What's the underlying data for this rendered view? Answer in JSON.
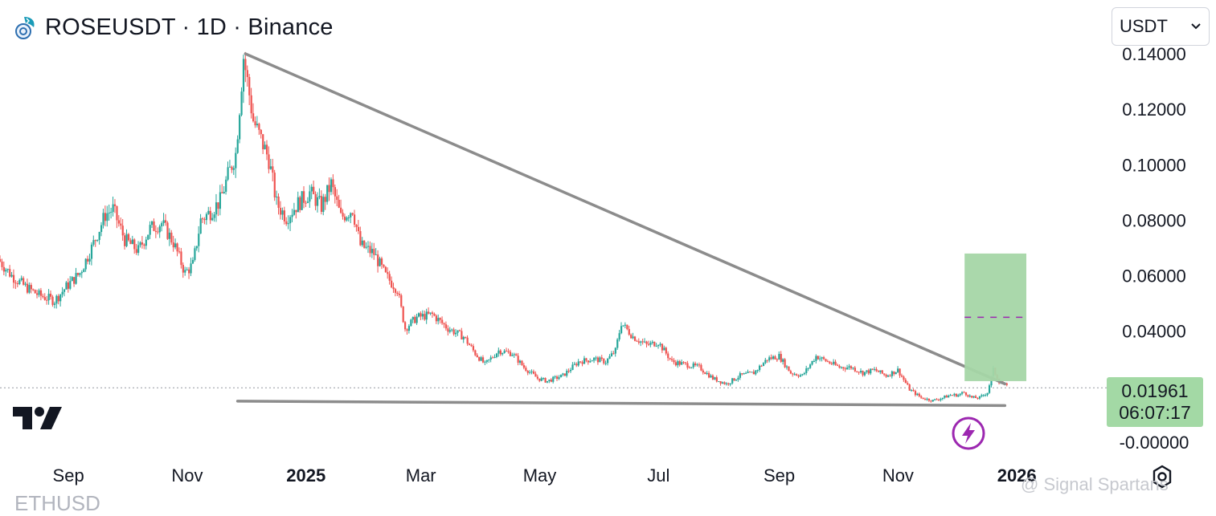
{
  "header": {
    "title": "ROSEUSDT · 1D · Binance",
    "currency_selector": "USDT"
  },
  "price_label": {
    "price": "0.01961",
    "countdown": "06:07:17"
  },
  "watermark": "@ Signal Spartans",
  "bottom_clipped_text": "ETHUSD",
  "colors": {
    "up": "#26a69a",
    "down": "#ef5350",
    "trendline": "#8c8c8c",
    "target_zone": "#a5d6a7",
    "accent": "#9c27b0"
  },
  "icons": {
    "logo": "rose-coin-icon",
    "brand": "tradingview-logo-icon",
    "settings": "gear-icon",
    "alert": "lightning-bolt-icon"
  },
  "chart_data": {
    "type": "candlestick",
    "symbol": "ROSEUSDT",
    "interval": "1D",
    "exchange": "Binance",
    "ylim": [
      -0.002,
      0.1435
    ],
    "y_ticks": [
      {
        "value": 0.14,
        "label": "0.14000"
      },
      {
        "value": 0.12,
        "label": "0.12000"
      },
      {
        "value": 0.1,
        "label": "0.10000"
      },
      {
        "value": 0.08,
        "label": "0.08000"
      },
      {
        "value": 0.06,
        "label": "0.06000"
      },
      {
        "value": 0.04,
        "label": "0.04000"
      },
      {
        "value": 0.0,
        "label": "-0.00000"
      }
    ],
    "x_range": [
      "2024-08-01",
      "2026-01-10"
    ],
    "x_ticks": [
      {
        "date": "2024-09-01",
        "label": "Sep",
        "bold": false
      },
      {
        "date": "2024-11-01",
        "label": "Nov",
        "bold": false
      },
      {
        "date": "2025-01-01",
        "label": "2025",
        "bold": true
      },
      {
        "date": "2025-03-01",
        "label": "Mar",
        "bold": false
      },
      {
        "date": "2025-05-01",
        "label": "May",
        "bold": false
      },
      {
        "date": "2025-07-01",
        "label": "Jul",
        "bold": false
      },
      {
        "date": "2025-09-01",
        "label": "Sep",
        "bold": false
      },
      {
        "date": "2025-11-01",
        "label": "Nov",
        "bold": false
      },
      {
        "date": "2026-01-01",
        "label": "2026",
        "bold": true
      }
    ],
    "price_path": [
      [
        "2024-08-01",
        0.066
      ],
      [
        "2024-08-08",
        0.06
      ],
      [
        "2024-08-15",
        0.056
      ],
      [
        "2024-08-22",
        0.053
      ],
      [
        "2024-08-30",
        0.051
      ],
      [
        "2024-09-05",
        0.056
      ],
      [
        "2024-09-12",
        0.061
      ],
      [
        "2024-09-18",
        0.07
      ],
      [
        "2024-09-25",
        0.082
      ],
      [
        "2024-09-29",
        0.084
      ],
      [
        "2024-10-05",
        0.073
      ],
      [
        "2024-10-12",
        0.069
      ],
      [
        "2024-10-18",
        0.077
      ],
      [
        "2024-10-24",
        0.079
      ],
      [
        "2024-10-30",
        0.072
      ],
      [
        "2024-11-05",
        0.061
      ],
      [
        "2024-11-09",
        0.064
      ],
      [
        "2024-11-13",
        0.08
      ],
      [
        "2024-11-18",
        0.083
      ],
      [
        "2024-11-23",
        0.087
      ],
      [
        "2024-11-27",
        0.096
      ],
      [
        "2024-12-01",
        0.104
      ],
      [
        "2024-12-03",
        0.121
      ],
      [
        "2024-12-05",
        0.139
      ],
      [
        "2024-12-07",
        0.13
      ],
      [
        "2024-12-10",
        0.116
      ],
      [
        "2024-12-14",
        0.109
      ],
      [
        "2024-12-18",
        0.102
      ],
      [
        "2024-12-22",
        0.086
      ],
      [
        "2024-12-27",
        0.081
      ],
      [
        "2025-01-02",
        0.086
      ],
      [
        "2025-01-08",
        0.09
      ],
      [
        "2025-01-14",
        0.085
      ],
      [
        "2025-01-19",
        0.093
      ],
      [
        "2025-01-24",
        0.081
      ],
      [
        "2025-01-30",
        0.084
      ],
      [
        "2025-02-03",
        0.071
      ],
      [
        "2025-02-10",
        0.068
      ],
      [
        "2025-02-16",
        0.06
      ],
      [
        "2025-02-22",
        0.055
      ],
      [
        "2025-02-26",
        0.041
      ],
      [
        "2025-03-04",
        0.045
      ],
      [
        "2025-03-12",
        0.046
      ],
      [
        "2025-03-20",
        0.041
      ],
      [
        "2025-03-28",
        0.038
      ],
      [
        "2025-04-03",
        0.032
      ],
      [
        "2025-04-08",
        0.028
      ],
      [
        "2025-04-15",
        0.033
      ],
      [
        "2025-04-22",
        0.032
      ],
      [
        "2025-04-28",
        0.027
      ],
      [
        "2025-05-05",
        0.023
      ],
      [
        "2025-05-10",
        0.022
      ],
      [
        "2025-05-18",
        0.024
      ],
      [
        "2025-05-26",
        0.029
      ],
      [
        "2025-06-03",
        0.03
      ],
      [
        "2025-06-09",
        0.029
      ],
      [
        "2025-06-14",
        0.033
      ],
      [
        "2025-06-17",
        0.043
      ],
      [
        "2025-06-23",
        0.038
      ],
      [
        "2025-06-30",
        0.035
      ],
      [
        "2025-07-06",
        0.036
      ],
      [
        "2025-07-13",
        0.029
      ],
      [
        "2025-07-20",
        0.028
      ],
      [
        "2025-07-27",
        0.027
      ],
      [
        "2025-08-03",
        0.023
      ],
      [
        "2025-08-10",
        0.021
      ],
      [
        "2025-08-17",
        0.024
      ],
      [
        "2025-08-24",
        0.025
      ],
      [
        "2025-08-31",
        0.03
      ],
      [
        "2025-09-06",
        0.031
      ],
      [
        "2025-09-12",
        0.025
      ],
      [
        "2025-09-18",
        0.024
      ],
      [
        "2025-09-25",
        0.031
      ],
      [
        "2025-10-01",
        0.029
      ],
      [
        "2025-10-07",
        0.027
      ],
      [
        "2025-10-13",
        0.027
      ],
      [
        "2025-10-19",
        0.025
      ],
      [
        "2025-10-25",
        0.026
      ],
      [
        "2025-10-31",
        0.024
      ],
      [
        "2025-11-06",
        0.026
      ],
      [
        "2025-11-12",
        0.019
      ],
      [
        "2025-11-18",
        0.016
      ],
      [
        "2025-11-24",
        0.015
      ],
      [
        "2025-11-29",
        0.016
      ],
      [
        "2025-12-03",
        0.017
      ],
      [
        "2025-12-07",
        0.017
      ],
      [
        "2025-12-10",
        0.018
      ],
      [
        "2025-12-14",
        0.016
      ],
      [
        "2025-12-18",
        0.016
      ],
      [
        "2025-12-22",
        0.018
      ],
      [
        "2025-12-25",
        0.026
      ],
      [
        "2025-12-28",
        0.022
      ],
      [
        "2026-01-01",
        0.02
      ]
    ],
    "current_price": 0.01961,
    "annotations": [
      {
        "type": "trendline",
        "from": [
          "2024-12-05",
          0.14
        ],
        "to": [
          "2025-12-30",
          0.021
        ]
      },
      {
        "type": "trendline",
        "from": [
          "2024-12-01",
          0.0148
        ],
        "to": [
          "2025-12-30",
          0.0132
        ]
      },
      {
        "type": "target-box",
        "x_start": "2026-01-01",
        "x_end": "2026-01-10",
        "low": 0.022,
        "high": 0.068,
        "mid": 0.045
      }
    ]
  }
}
